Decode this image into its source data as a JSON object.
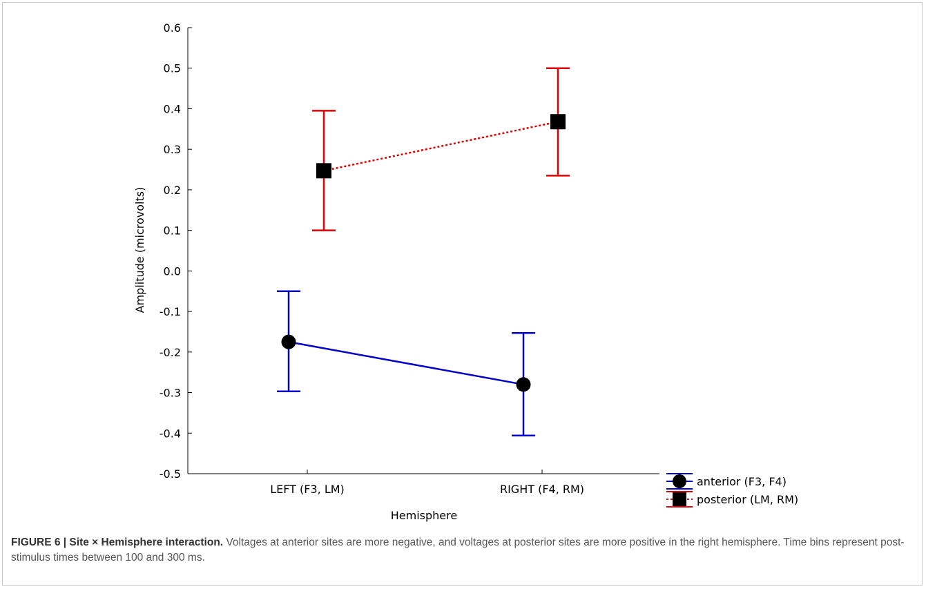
{
  "chart_data": {
    "type": "line",
    "xlabel": "Hemisphere",
    "ylabel": "Amplitude (microvolts)",
    "categories": [
      "LEFT (F3, LM)",
      "RIGHT (F4, RM)"
    ],
    "ylim": [
      -0.5,
      0.6
    ],
    "yticks": [
      "0.6",
      "0.5",
      "0.4",
      "0.3",
      "0.2",
      "0.1",
      "0.0",
      "-0.1",
      "-0.2",
      "-0.3",
      "-0.4",
      "-0.5"
    ],
    "grid": false,
    "legend_position": "bottom-right",
    "series": [
      {
        "name": "anterior (F3, F4)",
        "color": "#0000cc",
        "marker": "circle",
        "line_style": "solid",
        "values": [
          -0.175,
          -0.28
        ],
        "error_low": [
          -0.297,
          -0.406
        ],
        "error_high": [
          -0.05,
          -0.153
        ]
      },
      {
        "name": "posterior (LM, RM)",
        "color": "#e00000",
        "marker": "square",
        "line_style": "dotted",
        "values": [
          0.247,
          0.368
        ],
        "error_low": [
          0.1,
          0.235
        ],
        "error_high": [
          0.395,
          0.5
        ]
      }
    ]
  },
  "caption": {
    "lead": "FIGURE 6 | Site × Hemisphere interaction.",
    "text": " Voltages at anterior sites are more negative, and voltages at posterior sites are more positive in the right hemisphere. Time bins represent post-stimulus times between 100 and 300 ms."
  }
}
